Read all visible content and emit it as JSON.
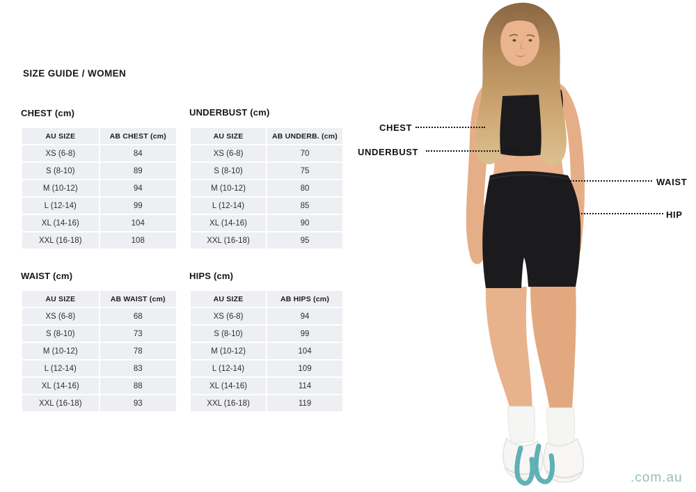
{
  "page": {
    "title": "SIZE GUIDE / WOMEN",
    "brand_suffix": ".com.au"
  },
  "sections": {
    "chest": {
      "heading": "CHEST (cm)",
      "columns": [
        "AU SIZE",
        "AB CHEST (cm)"
      ],
      "rows": [
        [
          "XS (6-8)",
          "84"
        ],
        [
          "S (8-10)",
          "89"
        ],
        [
          "M (10-12)",
          "94"
        ],
        [
          "L (12-14)",
          "99"
        ],
        [
          "XL (14-16)",
          "104"
        ],
        [
          "XXL (16-18)",
          "108"
        ]
      ]
    },
    "underbust": {
      "heading": "UNDERBUST (cm)",
      "columns": [
        "AU SIZE",
        "AB UNDERB. (cm)"
      ],
      "rows": [
        [
          "XS (6-8)",
          "70"
        ],
        [
          "S (8-10)",
          "75"
        ],
        [
          "M (10-12)",
          "80"
        ],
        [
          "L (12-14)",
          "85"
        ],
        [
          "XL (14-16)",
          "90"
        ],
        [
          "XXL (16-18)",
          "95"
        ]
      ]
    },
    "waist": {
      "heading": "WAIST (cm)",
      "columns": [
        "AU SIZE",
        "AB WAIST (cm)"
      ],
      "rows": [
        [
          "XS (6-8)",
          "68"
        ],
        [
          "S (8-10)",
          "73"
        ],
        [
          "M (10-12)",
          "78"
        ],
        [
          "L (12-14)",
          "83"
        ],
        [
          "XL (14-16)",
          "88"
        ],
        [
          "XXL (16-18)",
          "93"
        ]
      ]
    },
    "hips": {
      "heading": "HIPS (cm)",
      "columns": [
        "AU SIZE",
        "AB HIPS (cm)"
      ],
      "rows": [
        [
          "XS (6-8)",
          "94"
        ],
        [
          "S (8-10)",
          "99"
        ],
        [
          "M (10-12)",
          "104"
        ],
        [
          "L (12-14)",
          "109"
        ],
        [
          "XL (14-16)",
          "114"
        ],
        [
          "XXL (16-18)",
          "119"
        ]
      ]
    }
  },
  "figure": {
    "labels": {
      "chest": "CHEST",
      "underbust": "UNDERBUST",
      "waist": "WAIST",
      "hip": "HIP"
    }
  },
  "colors": {
    "table_cell_bg": "#edeff2",
    "text": "#161616",
    "brand_teal": "#93bdbe",
    "logo_teal": "#55abb1",
    "garment_black": "#1b1b1e",
    "skin": "#e8b28c",
    "hair_blonde": "#cfa975"
  }
}
